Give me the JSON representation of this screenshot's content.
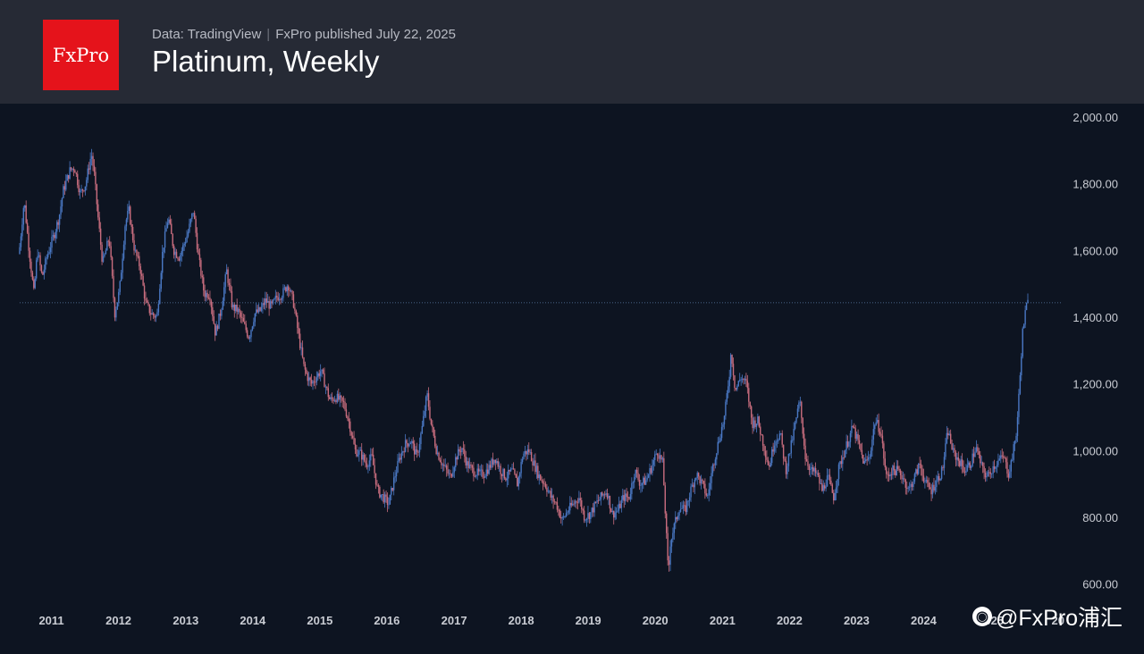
{
  "header": {
    "logo_text": "FxPro",
    "source": "Data: TradingView",
    "published": "FxPro published July 22, 2025",
    "title": "Platinum, Weekly"
  },
  "watermark": {
    "icon": "weibo-icon",
    "text": "@FxPro浦汇"
  },
  "colors": {
    "background": "#0d1421",
    "header_background": "#262a35",
    "logo_background": "#e5131b",
    "up_candle": "#4a78c4",
    "down_candle": "#c86d7e",
    "price_line": "#5b7ea8",
    "axis_text": "#c9ccd3"
  },
  "chart_data": {
    "type": "candlestick",
    "title": "Platinum, Weekly",
    "x_axis": {
      "type": "date",
      "ticks": [
        "2011",
        "2012",
        "2013",
        "2014",
        "2015",
        "2016",
        "2017",
        "2018",
        "2019",
        "2020",
        "2021",
        "2022",
        "2023",
        "2024",
        "2025",
        "20"
      ],
      "range": [
        "2010-07-12",
        "2025-07-21"
      ]
    },
    "y_axis": {
      "position": "right",
      "ticks": [
        "600.00",
        "800.00",
        "1,000.00",
        "1,200.00",
        "1,400.00",
        "1,600.00",
        "1,800.00",
        "2,000.00"
      ],
      "range": [
        540,
        2040
      ]
    },
    "current_price_line": 1443,
    "grid": false,
    "series": [
      {
        "points": [
          [
            "2010-07-12",
            1590
          ],
          [
            "2010-08-09",
            1750
          ],
          [
            "2010-09-01",
            1620
          ],
          [
            "2010-10-01",
            1470
          ],
          [
            "2010-10-20",
            1600
          ],
          [
            "2010-11-15",
            1520
          ],
          [
            "2010-12-10",
            1580
          ],
          [
            "2011-01-20",
            1650
          ],
          [
            "2011-02-15",
            1700
          ],
          [
            "2011-03-10",
            1780
          ],
          [
            "2011-04-15",
            1840
          ],
          [
            "2011-05-10",
            1850
          ],
          [
            "2011-06-10",
            1770
          ],
          [
            "2011-07-10",
            1800
          ],
          [
            "2011-08-10",
            1890
          ],
          [
            "2011-08-25",
            1830
          ],
          [
            "2011-09-15",
            1700
          ],
          [
            "2011-10-10",
            1560
          ],
          [
            "2011-11-15",
            1640
          ],
          [
            "2011-12-15",
            1410
          ],
          [
            "2012-01-10",
            1480
          ],
          [
            "2012-02-10",
            1680
          ],
          [
            "2012-03-01",
            1720
          ],
          [
            "2012-04-01",
            1600
          ],
          [
            "2012-05-01",
            1550
          ],
          [
            "2012-06-01",
            1440
          ],
          [
            "2012-07-01",
            1410
          ],
          [
            "2012-08-01",
            1400
          ],
          [
            "2012-09-01",
            1600
          ],
          [
            "2012-10-01",
            1700
          ],
          [
            "2012-11-01",
            1600
          ],
          [
            "2012-12-01",
            1580
          ],
          [
            "2013-01-15",
            1650
          ],
          [
            "2013-02-15",
            1720
          ],
          [
            "2013-03-15",
            1580
          ],
          [
            "2013-04-15",
            1470
          ],
          [
            "2013-05-15",
            1470
          ],
          [
            "2013-06-15",
            1350
          ],
          [
            "2013-07-15",
            1420
          ],
          [
            "2013-08-15",
            1540
          ],
          [
            "2013-09-15",
            1430
          ],
          [
            "2013-10-15",
            1420
          ],
          [
            "2013-11-15",
            1380
          ],
          [
            "2013-12-15",
            1340
          ],
          [
            "2014-01-15",
            1410
          ],
          [
            "2014-02-15",
            1420
          ],
          [
            "2014-03-15",
            1450
          ],
          [
            "2014-04-15",
            1430
          ],
          [
            "2014-05-15",
            1460
          ],
          [
            "2014-06-15",
            1470
          ],
          [
            "2014-07-15",
            1500
          ],
          [
            "2014-08-15",
            1440
          ],
          [
            "2014-09-15",
            1330
          ],
          [
            "2014-10-10",
            1250
          ],
          [
            "2014-10-30",
            1220
          ],
          [
            "2014-11-20",
            1200
          ],
          [
            "2015-01-10",
            1240
          ],
          [
            "2015-02-01",
            1200
          ],
          [
            "2015-03-01",
            1150
          ],
          [
            "2015-04-01",
            1160
          ],
          [
            "2015-05-15",
            1140
          ],
          [
            "2015-06-15",
            1080
          ],
          [
            "2015-07-15",
            1000
          ],
          [
            "2015-08-15",
            990
          ],
          [
            "2015-09-15",
            960
          ],
          [
            "2015-10-15",
            980
          ],
          [
            "2015-11-15",
            880
          ],
          [
            "2015-12-15",
            860
          ],
          [
            "2016-01-15",
            840
          ],
          [
            "2016-02-15",
            920
          ],
          [
            "2016-03-15",
            980
          ],
          [
            "2016-04-15",
            1020
          ],
          [
            "2016-05-15",
            1030
          ],
          [
            "2016-06-15",
            980
          ],
          [
            "2016-07-15",
            1070
          ],
          [
            "2016-08-10",
            1170
          ],
          [
            "2016-09-01",
            1080
          ],
          [
            "2016-10-01",
            1000
          ],
          [
            "2016-11-01",
            960
          ],
          [
            "2016-12-15",
            920
          ],
          [
            "2017-01-15",
            980
          ],
          [
            "2017-02-15",
            1010
          ],
          [
            "2017-03-15",
            960
          ],
          [
            "2017-04-15",
            940
          ],
          [
            "2017-05-15",
            930
          ],
          [
            "2017-06-15",
            930
          ],
          [
            "2017-07-15",
            950
          ],
          [
            "2017-08-15",
            980
          ],
          [
            "2017-09-15",
            940
          ],
          [
            "2017-10-15",
            920
          ],
          [
            "2017-11-15",
            940
          ],
          [
            "2017-12-15",
            900
          ],
          [
            "2018-01-15",
            990
          ],
          [
            "2018-02-15",
            1000
          ],
          [
            "2018-03-15",
            960
          ],
          [
            "2018-04-15",
            920
          ],
          [
            "2018-05-15",
            900
          ],
          [
            "2018-06-15",
            860
          ],
          [
            "2018-07-15",
            840
          ],
          [
            "2018-08-15",
            790
          ],
          [
            "2018-09-15",
            820
          ],
          [
            "2018-10-15",
            840
          ],
          [
            "2018-11-15",
            860
          ],
          [
            "2018-12-15",
            800
          ],
          [
            "2019-01-15",
            810
          ],
          [
            "2019-02-15",
            840
          ],
          [
            "2019-03-15",
            860
          ],
          [
            "2019-04-15",
            880
          ],
          [
            "2019-05-15",
            810
          ],
          [
            "2019-06-15",
            820
          ],
          [
            "2019-07-15",
            860
          ],
          [
            "2019-08-15",
            860
          ],
          [
            "2019-09-15",
            940
          ],
          [
            "2019-10-15",
            900
          ],
          [
            "2019-11-15",
            910
          ],
          [
            "2019-12-15",
            950
          ],
          [
            "2020-01-15",
            1000
          ],
          [
            "2020-02-15",
            960
          ],
          [
            "2020-03-16",
            620
          ],
          [
            "2020-03-25",
            720
          ],
          [
            "2020-04-15",
            770
          ],
          [
            "2020-05-15",
            830
          ],
          [
            "2020-06-15",
            820
          ],
          [
            "2020-07-15",
            880
          ],
          [
            "2020-08-15",
            930
          ],
          [
            "2020-09-15",
            900
          ],
          [
            "2020-10-15",
            860
          ],
          [
            "2020-11-15",
            960
          ],
          [
            "2020-12-15",
            1030
          ],
          [
            "2021-01-15",
            1100
          ],
          [
            "2021-02-15",
            1250
          ],
          [
            "2021-02-20",
            1300
          ],
          [
            "2021-03-15",
            1180
          ],
          [
            "2021-04-15",
            1220
          ],
          [
            "2021-05-15",
            1200
          ],
          [
            "2021-06-15",
            1080
          ],
          [
            "2021-07-15",
            1090
          ],
          [
            "2021-08-15",
            1020
          ],
          [
            "2021-09-15",
            950
          ],
          [
            "2021-10-15",
            1030
          ],
          [
            "2021-11-15",
            1050
          ],
          [
            "2021-12-15",
            940
          ],
          [
            "2022-01-15",
            1020
          ],
          [
            "2022-03-01",
            1150
          ],
          [
            "2022-04-01",
            980
          ],
          [
            "2022-05-01",
            940
          ],
          [
            "2022-06-01",
            930
          ],
          [
            "2022-07-01",
            880
          ],
          [
            "2022-08-01",
            920
          ],
          [
            "2022-09-01",
            860
          ],
          [
            "2022-10-01",
            950
          ],
          [
            "2022-11-01",
            1000
          ],
          [
            "2022-12-15",
            1070
          ],
          [
            "2023-01-15",
            1020
          ],
          [
            "2023-02-15",
            960
          ],
          [
            "2023-03-15",
            980
          ],
          [
            "2023-04-15",
            1090
          ],
          [
            "2023-05-15",
            1060
          ],
          [
            "2023-06-15",
            920
          ],
          [
            "2023-07-15",
            940
          ],
          [
            "2023-08-15",
            940
          ],
          [
            "2023-09-15",
            920
          ],
          [
            "2023-10-15",
            880
          ],
          [
            "2023-11-15",
            920
          ],
          [
            "2023-12-15",
            960
          ],
          [
            "2024-01-15",
            900
          ],
          [
            "2024-02-15",
            880
          ],
          [
            "2024-03-15",
            910
          ],
          [
            "2024-04-15",
            940
          ],
          [
            "2024-05-15",
            1060
          ],
          [
            "2024-06-15",
            990
          ],
          [
            "2024-07-15",
            970
          ],
          [
            "2024-08-15",
            940
          ],
          [
            "2024-09-15",
            960
          ],
          [
            "2024-10-15",
            1010
          ],
          [
            "2024-11-15",
            950
          ],
          [
            "2024-12-15",
            920
          ],
          [
            "2025-01-15",
            950
          ],
          [
            "2025-02-15",
            970
          ],
          [
            "2025-03-15",
            980
          ],
          [
            "2025-04-10",
            930
          ],
          [
            "2025-05-01",
            980
          ],
          [
            "2025-05-25",
            1060
          ],
          [
            "2025-06-10",
            1200
          ],
          [
            "2025-06-25",
            1350
          ],
          [
            "2025-07-10",
            1410
          ],
          [
            "2025-07-21",
            1443
          ]
        ]
      }
    ]
  }
}
